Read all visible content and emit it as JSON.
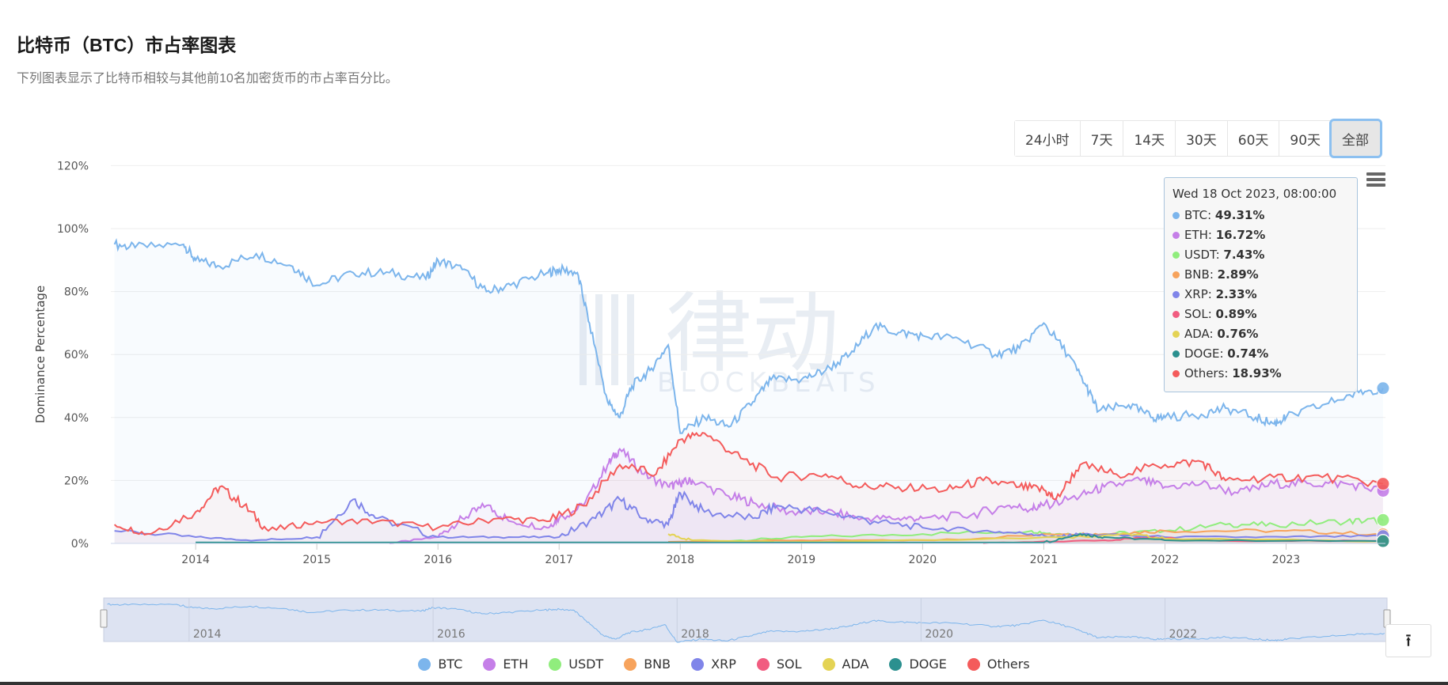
{
  "header": {
    "title": "比特币（BTC）市占率图表",
    "subtitle": "下列图表显示了比特币相较与其他前10名加密货币的市占率百分比。"
  },
  "range_buttons": [
    {
      "label": "24小时"
    },
    {
      "label": "7天"
    },
    {
      "label": "14天"
    },
    {
      "label": "30天"
    },
    {
      "label": "60天"
    },
    {
      "label": "90天"
    },
    {
      "label": "全部",
      "active": true
    }
  ],
  "watermark": {
    "text": "律动",
    "sub": "BLOCKBEATS"
  },
  "tooltip": {
    "header": "Wed 18 Oct 2023, 08:00:00",
    "rows": [
      {
        "name": "BTC",
        "value": "49.31%"
      },
      {
        "name": "ETH",
        "value": "16.72%"
      },
      {
        "name": "USDT",
        "value": "7.43%"
      },
      {
        "name": "BNB",
        "value": "2.89%"
      },
      {
        "name": "XRP",
        "value": "2.33%"
      },
      {
        "name": "SOL",
        "value": "0.89%"
      },
      {
        "name": "ADA",
        "value": "0.76%"
      },
      {
        "name": "DOGE",
        "value": "0.74%"
      },
      {
        "name": "Others",
        "value": "18.93%"
      }
    ]
  },
  "back_to_top": "⭱",
  "chart_data": {
    "type": "line",
    "title": "",
    "ylabel": "Dominance Percentage",
    "xlabel": "",
    "ylim": [
      0,
      120
    ],
    "xlim": [
      2013.3,
      2023.82
    ],
    "yticks": [
      "0%",
      "20%",
      "40%",
      "60%",
      "80%",
      "100%",
      "120%"
    ],
    "xticks": [
      "2014",
      "2015",
      "2016",
      "2017",
      "2018",
      "2019",
      "2020",
      "2021",
      "2022",
      "2023"
    ],
    "navigator_ticks": [
      "2014",
      "2016",
      "2018",
      "2020",
      "2022"
    ],
    "grid": true,
    "legend_position": "bottom",
    "series": [
      {
        "name": "BTC",
        "color": "#7cb5ec",
        "points": [
          [
            2013.33,
            95
          ],
          [
            2013.5,
            94
          ],
          [
            2013.9,
            95
          ],
          [
            2014,
            90
          ],
          [
            2014.2,
            88
          ],
          [
            2014.5,
            92
          ],
          [
            2014.8,
            88
          ],
          [
            2015,
            82
          ],
          [
            2015.3,
            86
          ],
          [
            2015.6,
            86
          ],
          [
            2015.9,
            84
          ],
          [
            2016,
            90
          ],
          [
            2016.2,
            87
          ],
          [
            2016.4,
            80
          ],
          [
            2016.6,
            82
          ],
          [
            2016.9,
            86
          ],
          [
            2017,
            87
          ],
          [
            2017.15,
            86
          ],
          [
            2017.25,
            70
          ],
          [
            2017.4,
            45
          ],
          [
            2017.5,
            40
          ],
          [
            2017.6,
            50
          ],
          [
            2017.75,
            55
          ],
          [
            2017.9,
            63
          ],
          [
            2018,
            35
          ],
          [
            2018.2,
            40
          ],
          [
            2018.4,
            37
          ],
          [
            2018.6,
            45
          ],
          [
            2018.75,
            52
          ],
          [
            2019,
            52
          ],
          [
            2019.2,
            55
          ],
          [
            2019.4,
            60
          ],
          [
            2019.6,
            69
          ],
          [
            2019.8,
            67
          ],
          [
            2020,
            66
          ],
          [
            2020.3,
            65
          ],
          [
            2020.6,
            60
          ],
          [
            2020.8,
            62
          ],
          [
            2021,
            70
          ],
          [
            2021.2,
            60
          ],
          [
            2021.35,
            50
          ],
          [
            2021.45,
            42
          ],
          [
            2021.7,
            44
          ],
          [
            2021.9,
            40
          ],
          [
            2022,
            40
          ],
          [
            2022.3,
            41
          ],
          [
            2022.5,
            43
          ],
          [
            2022.75,
            40
          ],
          [
            2022.9,
            38
          ],
          [
            2023,
            40
          ],
          [
            2023.3,
            44
          ],
          [
            2023.6,
            48
          ],
          [
            2023.8,
            49.31
          ]
        ]
      },
      {
        "name": "ETH",
        "color": "#c57fe8",
        "points": [
          [
            2015.6,
            0
          ],
          [
            2016,
            2
          ],
          [
            2016.2,
            8
          ],
          [
            2016.4,
            12
          ],
          [
            2016.6,
            7
          ],
          [
            2016.9,
            5
          ],
          [
            2017,
            8
          ],
          [
            2017.2,
            12
          ],
          [
            2017.4,
            25
          ],
          [
            2017.5,
            30
          ],
          [
            2017.7,
            22
          ],
          [
            2017.9,
            18
          ],
          [
            2018,
            19
          ],
          [
            2018.1,
            20
          ],
          [
            2018.4,
            15
          ],
          [
            2018.6,
            13
          ],
          [
            2018.9,
            10
          ],
          [
            2019.2,
            10
          ],
          [
            2019.5,
            8
          ],
          [
            2019.8,
            8
          ],
          [
            2020,
            8
          ],
          [
            2020.4,
            9
          ],
          [
            2020.7,
            12
          ],
          [
            2020.9,
            11
          ],
          [
            2021,
            12
          ],
          [
            2021.3,
            15
          ],
          [
            2021.5,
            18
          ],
          [
            2021.8,
            20
          ],
          [
            2022,
            18
          ],
          [
            2022.3,
            19
          ],
          [
            2022.6,
            16
          ],
          [
            2022.9,
            19
          ],
          [
            2023.2,
            19
          ],
          [
            2023.5,
            19
          ],
          [
            2023.8,
            16.72
          ]
        ]
      },
      {
        "name": "USDT",
        "color": "#90ed7d",
        "points": [
          [
            2017.9,
            0.2
          ],
          [
            2018.5,
            1
          ],
          [
            2019,
            2
          ],
          [
            2020,
            3
          ],
          [
            2020.9,
            4
          ],
          [
            2021.1,
            3
          ],
          [
            2021.5,
            3
          ],
          [
            2022,
            4
          ],
          [
            2022.5,
            6
          ],
          [
            2022.9,
            6
          ],
          [
            2023.5,
            7
          ],
          [
            2023.8,
            7.43
          ]
        ]
      },
      {
        "name": "BNB",
        "color": "#f7a35c",
        "points": [
          [
            2017.9,
            0.5
          ],
          [
            2019,
            1
          ],
          [
            2020,
            1
          ],
          [
            2021.2,
            3
          ],
          [
            2021.5,
            3
          ],
          [
            2022,
            4
          ],
          [
            2023,
            4
          ],
          [
            2023.8,
            2.89
          ]
        ]
      },
      {
        "name": "XRP",
        "color": "#8085e9",
        "points": [
          [
            2013.33,
            4
          ],
          [
            2014,
            2
          ],
          [
            2014.5,
            1
          ],
          [
            2015,
            2
          ],
          [
            2015.3,
            14
          ],
          [
            2015.5,
            8
          ],
          [
            2016,
            2
          ],
          [
            2016.5,
            2
          ],
          [
            2017,
            2
          ],
          [
            2017.3,
            8
          ],
          [
            2017.5,
            14
          ],
          [
            2017.7,
            8
          ],
          [
            2017.9,
            6
          ],
          [
            2018,
            16
          ],
          [
            2018.2,
            10
          ],
          [
            2018.6,
            8
          ],
          [
            2018.8,
            12
          ],
          [
            2019.2,
            10
          ],
          [
            2019.6,
            7
          ],
          [
            2020,
            5
          ],
          [
            2020.5,
            4
          ],
          [
            2020.9,
            3
          ],
          [
            2021.1,
            2
          ],
          [
            2021.3,
            3
          ],
          [
            2022,
            2
          ],
          [
            2023,
            2
          ],
          [
            2023.8,
            2.33
          ]
        ]
      },
      {
        "name": "SOL",
        "color": "#f15c80",
        "points": [
          [
            2020.5,
            0
          ],
          [
            2021.5,
            1
          ],
          [
            2021.9,
            2
          ],
          [
            2022.5,
            0.8
          ],
          [
            2023.8,
            0.89
          ]
        ]
      },
      {
        "name": "ADA",
        "color": "#e4d354",
        "points": [
          [
            2017.9,
            3
          ],
          [
            2018.1,
            1
          ],
          [
            2019,
            0.5
          ],
          [
            2021.2,
            2
          ],
          [
            2021.7,
            3
          ],
          [
            2022,
            1.5
          ],
          [
            2023.8,
            0.76
          ]
        ]
      },
      {
        "name": "DOGE",
        "color": "#2b908f",
        "points": [
          [
            2014,
            0.3
          ],
          [
            2021,
            0.3
          ],
          [
            2021.3,
            3
          ],
          [
            2021.5,
            2
          ],
          [
            2022,
            1
          ],
          [
            2023.8,
            0.74
          ]
        ]
      },
      {
        "name": "Others",
        "color": "#f45b5b",
        "points": [
          [
            2013.33,
            6
          ],
          [
            2013.6,
            3
          ],
          [
            2014,
            10
          ],
          [
            2014.2,
            18
          ],
          [
            2014.4,
            12
          ],
          [
            2014.6,
            4
          ],
          [
            2015,
            7
          ],
          [
            2015.5,
            7
          ],
          [
            2016,
            5
          ],
          [
            2016.5,
            8
          ],
          [
            2016.9,
            7
          ],
          [
            2017.2,
            12
          ],
          [
            2017.5,
            25
          ],
          [
            2017.8,
            22
          ],
          [
            2018,
            33
          ],
          [
            2018.2,
            35
          ],
          [
            2018.5,
            27
          ],
          [
            2018.8,
            21
          ],
          [
            2019.2,
            22
          ],
          [
            2019.5,
            18
          ],
          [
            2019.8,
            18
          ],
          [
            2020.2,
            17
          ],
          [
            2020.5,
            20
          ],
          [
            2020.8,
            18
          ],
          [
            2021,
            17
          ],
          [
            2021.1,
            14
          ],
          [
            2021.3,
            25
          ],
          [
            2021.6,
            22
          ],
          [
            2022,
            25
          ],
          [
            2022.3,
            26
          ],
          [
            2022.5,
            20
          ],
          [
            2022.9,
            21
          ],
          [
            2023.3,
            21
          ],
          [
            2023.8,
            18.93
          ]
        ]
      }
    ]
  }
}
